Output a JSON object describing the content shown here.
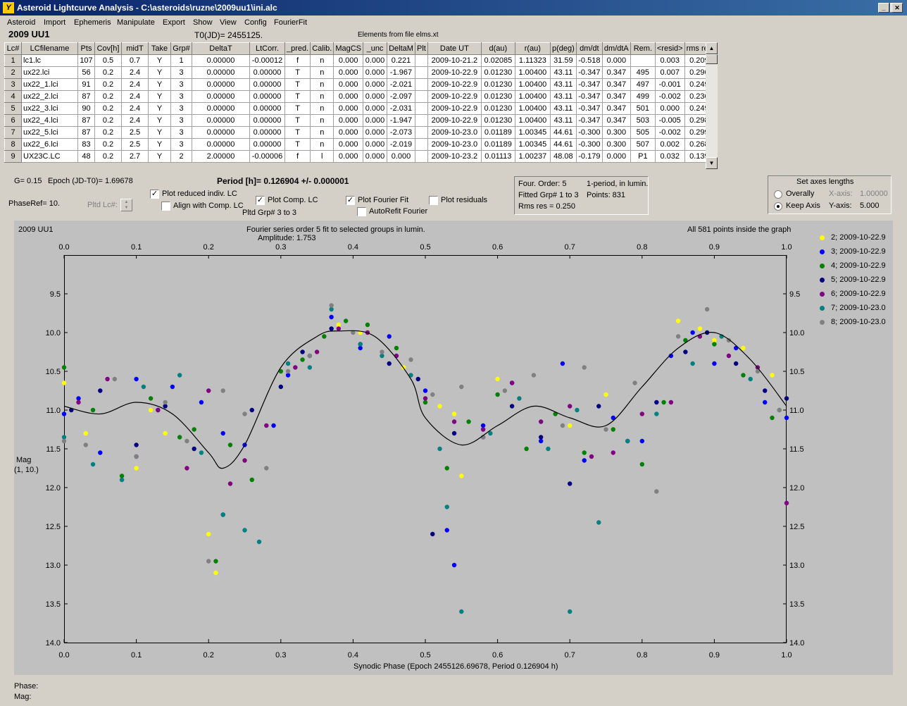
{
  "window": {
    "title": "Asteroid Lightcurve Analysis - C:\\asteroids\\ruzne\\2009uu1\\ini.alc"
  },
  "menu": [
    "Asteroid",
    "Import",
    "Ephemeris",
    "Manipulate",
    "Export",
    "Show",
    "View",
    "Config",
    "FourierFit"
  ],
  "header": {
    "asteroid": "2009 UU1",
    "t0": "T0(JD)= 2455125.",
    "elements": "Elements from file elms.xt"
  },
  "table": {
    "columns": [
      "Lc#",
      "LCfilename",
      "Pts",
      "Cov[h]",
      "midT",
      "Take",
      "Grp#",
      "DeltaT",
      "LtCorr.",
      "_pred.",
      "Calib.",
      "MagCS",
      "_unc",
      "DeltaM",
      "Plt",
      "Date UT",
      "d(au)",
      "r(au)",
      "p(deg)",
      "dm/dt",
      "dm/dtA",
      "Rem.",
      "<resid>",
      "rms res"
    ],
    "rows": [
      [
        "1",
        "lc1.lc",
        "107",
        "0.5",
        "0.7",
        "Y",
        "1",
        "0.00000",
        "-0.00012",
        "f",
        "n",
        "0.000",
        "0.000",
        "0.221",
        "",
        "2009-10-21.2",
        "0.02085",
        "1.11323",
        "31.59",
        "-0.518",
        "0.000",
        "",
        "0.003",
        "0.209"
      ],
      [
        "2",
        "ux22.lci",
        "56",
        "0.2",
        "2.4",
        "Y",
        "3",
        "0.00000",
        "0.00000",
        "T",
        "n",
        "0.000",
        "0.000",
        "-1.967",
        "",
        "2009-10-22.9",
        "0.01230",
        "1.00400",
        "43.11",
        "-0.347",
        "0.347",
        "495",
        "0.007",
        "0.296"
      ],
      [
        "3",
        "ux22_1.lci",
        "91",
        "0.2",
        "2.4",
        "Y",
        "3",
        "0.00000",
        "0.00000",
        "T",
        "n",
        "0.000",
        "0.000",
        "-2.021",
        "",
        "2009-10-22.9",
        "0.01230",
        "1.00400",
        "43.11",
        "-0.347",
        "0.347",
        "497",
        "-0.001",
        "0.249"
      ],
      [
        "4",
        "ux22_2.lci",
        "87",
        "0.2",
        "2.4",
        "Y",
        "3",
        "0.00000",
        "0.00000",
        "T",
        "n",
        "0.000",
        "0.000",
        "-2.097",
        "",
        "2009-10-22.9",
        "0.01230",
        "1.00400",
        "43.11",
        "-0.347",
        "0.347",
        "499",
        "-0.002",
        "0.236"
      ],
      [
        "5",
        "ux22_3.lci",
        "90",
        "0.2",
        "2.4",
        "Y",
        "3",
        "0.00000",
        "0.00000",
        "T",
        "n",
        "0.000",
        "0.000",
        "-2.031",
        "",
        "2009-10-22.9",
        "0.01230",
        "1.00400",
        "43.11",
        "-0.347",
        "0.347",
        "501",
        "0.000",
        "0.249"
      ],
      [
        "6",
        "ux22_4.lci",
        "87",
        "0.2",
        "2.4",
        "Y",
        "3",
        "0.00000",
        "0.00000",
        "T",
        "n",
        "0.000",
        "0.000",
        "-1.947",
        "",
        "2009-10-22.9",
        "0.01230",
        "1.00400",
        "43.11",
        "-0.347",
        "0.347",
        "503",
        "-0.005",
        "0.298"
      ],
      [
        "7",
        "ux22_5.lci",
        "87",
        "0.2",
        "2.5",
        "Y",
        "3",
        "0.00000",
        "0.00000",
        "T",
        "n",
        "0.000",
        "0.000",
        "-2.073",
        "",
        "2009-10-23.0",
        "0.01189",
        "1.00345",
        "44.61",
        "-0.300",
        "0.300",
        "505",
        "-0.002",
        "0.299"
      ],
      [
        "8",
        "ux22_6.lci",
        "83",
        "0.2",
        "2.5",
        "Y",
        "3",
        "0.00000",
        "0.00000",
        "T",
        "n",
        "0.000",
        "0.000",
        "-2.019",
        "",
        "2009-10-23.0",
        "0.01189",
        "1.00345",
        "44.61",
        "-0.300",
        "0.300",
        "507",
        "0.002",
        "0.268"
      ],
      [
        "9",
        "UX23C.LC",
        "48",
        "0.2",
        "2.7",
        "Y",
        "2",
        "2.00000",
        "-0.00006",
        "f",
        "l",
        "0.000",
        "0.000",
        "0.000",
        "",
        "2009-10-23.2",
        "0.01113",
        "1.00237",
        "48.08",
        "-0.179",
        "0.000",
        "P1",
        "0.032",
        "0.139"
      ]
    ]
  },
  "controls": {
    "g": "G= 0.15",
    "epoch": "Epoch (JD-T0)= 1.69678",
    "phase_ref": "PhaseRef= 10.",
    "pltd_lc": "Pltd Lc#:",
    "period": "Period [h]= 0.126904 +/- 0.000001",
    "plot_reduced": "Plot reduced indiv. LC",
    "align_comp": "Align with Comp. LC",
    "plot_comp": "Plot Comp. LC",
    "pltd_grp": "Pltd Grp#  3  to  3",
    "plot_fourier": "Plot Fourier Fit",
    "autorefit": "AutoRefit Fourier",
    "plot_residuals": "Plot residuals",
    "fourier_order": "Four. Order:  5",
    "fitted_grp": "Fitted Grp# 1 to 3",
    "rms_res": "Rms res     = 0.250",
    "one_period": "1-period, in lumin.",
    "points": "Points: 831",
    "axes_title": "Set axes lengths",
    "overally": "Overally",
    "keep_axis": "Keep Axis",
    "x_axis_label": "X-axis:",
    "x_axis_value": "1.00000",
    "y_axis_label": "Y-axis:",
    "y_axis_value": "5.000"
  },
  "footer": {
    "phase": "Phase:",
    "mag": "Mag:"
  },
  "colors": {
    "titlebar": "#0a246a",
    "plot_bg": "#c0c0c0"
  },
  "chart_data": {
    "type": "scatter",
    "title": "Fourier series order 5 fit to selected groups in lumin.",
    "subtitle": "Amplitude: 1.753",
    "corner_left": "2009 UU1",
    "corner_right": "All 581 points inside the graph",
    "xlabel": "Synodic Phase (Epoch 2455126.69678, Period 0.126904 h)",
    "ylabel": "Mag",
    "ylabel2": "(1, 10.)",
    "xlim": [
      0,
      1
    ],
    "ylim": [
      14.0,
      9.0
    ],
    "x_ticks": [
      "0.0",
      "0.1",
      "0.2",
      "0.3",
      "0.4",
      "0.5",
      "0.6",
      "0.7",
      "0.8",
      "0.9",
      "1.0"
    ],
    "y_ticks": [
      "9.5",
      "10.0",
      "10.5",
      "11.0",
      "11.5",
      "12.0",
      "12.5",
      "13.0",
      "13.5",
      "14.0"
    ],
    "fit_curve": {
      "x": [
        0.0,
        0.05,
        0.1,
        0.15,
        0.2,
        0.22,
        0.25,
        0.3,
        0.35,
        0.38,
        0.43,
        0.48,
        0.5,
        0.55,
        0.6,
        0.65,
        0.7,
        0.75,
        0.8,
        0.85,
        0.9,
        0.95,
        1.0
      ],
      "y": [
        10.95,
        11.05,
        10.9,
        11.05,
        11.55,
        11.75,
        11.45,
        10.45,
        10.05,
        9.98,
        10.05,
        10.6,
        11.1,
        11.45,
        11.2,
        10.95,
        11.1,
        11.2,
        10.7,
        10.2,
        10.0,
        10.35,
        10.95
      ]
    },
    "series": [
      {
        "name": "2; 2009-10-22.9",
        "color": "#ffff00",
        "x": [
          0.0,
          0.03,
          0.1,
          0.12,
          0.14,
          0.2,
          0.21,
          0.35,
          0.38,
          0.41,
          0.47,
          0.52,
          0.54,
          0.55,
          0.6,
          0.7,
          0.75,
          0.85,
          0.88,
          0.9,
          0.94,
          0.98
        ],
        "y": [
          10.65,
          11.3,
          11.75,
          11.0,
          11.3,
          12.6,
          13.1,
          10.25,
          9.9,
          10.0,
          10.45,
          10.95,
          11.05,
          11.85,
          10.6,
          11.2,
          10.8,
          9.85,
          9.95,
          10.1,
          10.2,
          10.55
        ]
      },
      {
        "name": "3; 2009-10-22.9",
        "color": "#0000ff",
        "x": [
          0.0,
          0.02,
          0.05,
          0.1,
          0.13,
          0.15,
          0.19,
          0.22,
          0.25,
          0.29,
          0.31,
          0.34,
          0.37,
          0.41,
          0.45,
          0.5,
          0.53,
          0.54,
          0.58,
          0.62,
          0.66,
          0.69,
          0.72,
          0.76,
          0.8,
          0.84,
          0.87,
          0.9,
          0.93,
          0.97,
          1.0
        ],
        "y": [
          11.05,
          10.85,
          11.55,
          10.6,
          11.0,
          10.7,
          10.9,
          11.3,
          11.45,
          11.2,
          10.55,
          10.3,
          9.8,
          10.2,
          10.05,
          10.75,
          12.55,
          13.0,
          11.2,
          10.65,
          11.4,
          10.4,
          11.65,
          11.1,
          11.4,
          10.3,
          10.0,
          10.4,
          10.2,
          10.9,
          11.1
        ]
      },
      {
        "name": "4; 2009-10-22.9",
        "color": "#008000",
        "x": [
          0.0,
          0.04,
          0.08,
          0.12,
          0.16,
          0.18,
          0.21,
          0.23,
          0.26,
          0.3,
          0.33,
          0.36,
          0.39,
          0.42,
          0.46,
          0.5,
          0.53,
          0.56,
          0.6,
          0.64,
          0.68,
          0.72,
          0.76,
          0.8,
          0.83,
          0.86,
          0.9,
          0.94,
          0.98
        ],
        "y": [
          10.45,
          11.0,
          11.85,
          10.85,
          11.35,
          11.25,
          12.95,
          11.45,
          11.9,
          10.5,
          10.35,
          10.05,
          9.85,
          9.9,
          10.2,
          10.9,
          11.75,
          11.15,
          10.8,
          11.5,
          11.05,
          11.55,
          11.25,
          11.7,
          10.9,
          10.1,
          10.15,
          10.55,
          11.1
        ]
      },
      {
        "name": "5; 2009-10-22.9",
        "color": "#000080",
        "x": [
          0.01,
          0.05,
          0.1,
          0.14,
          0.18,
          0.22,
          0.26,
          0.3,
          0.33,
          0.37,
          0.41,
          0.45,
          0.49,
          0.51,
          0.54,
          0.58,
          0.62,
          0.66,
          0.7,
          0.74,
          0.78,
          0.82,
          0.86,
          0.89,
          0.93,
          0.97,
          1.0
        ],
        "y": [
          11.0,
          10.75,
          11.45,
          10.95,
          11.5,
          12.35,
          11.0,
          10.7,
          10.25,
          9.95,
          10.15,
          10.4,
          10.6,
          12.6,
          11.3,
          11.35,
          10.95,
          11.35,
          11.95,
          10.95,
          11.4,
          10.9,
          10.25,
          10.0,
          10.4,
          10.75,
          10.85
        ]
      },
      {
        "name": "6; 2009-10-22.9",
        "color": "#800080",
        "x": [
          0.02,
          0.06,
          0.1,
          0.13,
          0.17,
          0.2,
          0.23,
          0.25,
          0.28,
          0.32,
          0.35,
          0.38,
          0.42,
          0.46,
          0.5,
          0.54,
          0.58,
          0.62,
          0.66,
          0.7,
          0.73,
          0.76,
          0.8,
          0.84,
          0.88,
          0.92,
          0.96,
          1.0
        ],
        "y": [
          10.9,
          10.6,
          11.6,
          11.0,
          11.75,
          10.75,
          11.95,
          11.65,
          11.2,
          10.45,
          10.25,
          9.95,
          10.0,
          10.3,
          10.85,
          11.15,
          11.25,
          10.65,
          11.15,
          10.95,
          11.6,
          11.55,
          11.05,
          10.9,
          10.05,
          10.3,
          10.45,
          12.2
        ]
      },
      {
        "name": "7; 2009-10-23.0",
        "color": "#008080",
        "x": [
          0.0,
          0.04,
          0.08,
          0.11,
          0.16,
          0.19,
          0.22,
          0.25,
          0.27,
          0.31,
          0.34,
          0.37,
          0.41,
          0.44,
          0.48,
          0.52,
          0.53,
          0.55,
          0.59,
          0.63,
          0.67,
          0.7,
          0.71,
          0.74,
          0.78,
          0.82,
          0.87,
          0.91,
          0.95,
          0.99
        ],
        "y": [
          11.35,
          11.7,
          11.9,
          10.7,
          10.55,
          11.55,
          12.35,
          12.55,
          12.7,
          10.4,
          10.45,
          9.7,
          10.15,
          10.3,
          10.55,
          11.5,
          12.25,
          13.6,
          11.3,
          10.85,
          11.5,
          13.6,
          11.0,
          12.45,
          11.4,
          11.05,
          10.4,
          10.05,
          10.6,
          11.0
        ]
      },
      {
        "name": "8; 2009-10-23.0",
        "color": "#808080",
        "x": [
          0.0,
          0.03,
          0.07,
          0.1,
          0.14,
          0.17,
          0.2,
          0.22,
          0.25,
          0.28,
          0.31,
          0.34,
          0.37,
          0.4,
          0.44,
          0.48,
          0.51,
          0.55,
          0.58,
          0.61,
          0.65,
          0.69,
          0.72,
          0.75,
          0.79,
          0.82,
          0.85,
          0.89,
          0.92,
          0.96,
          0.99
        ],
        "y": [
          11.4,
          11.45,
          10.6,
          11.6,
          10.9,
          11.4,
          12.95,
          10.75,
          11.05,
          11.75,
          10.5,
          10.3,
          9.65,
          10.0,
          10.25,
          10.35,
          10.8,
          10.7,
          11.35,
          10.75,
          10.55,
          11.2,
          10.45,
          11.25,
          10.65,
          12.05,
          10.05,
          9.7,
          10.1,
          10.5,
          11.0
        ]
      }
    ]
  }
}
